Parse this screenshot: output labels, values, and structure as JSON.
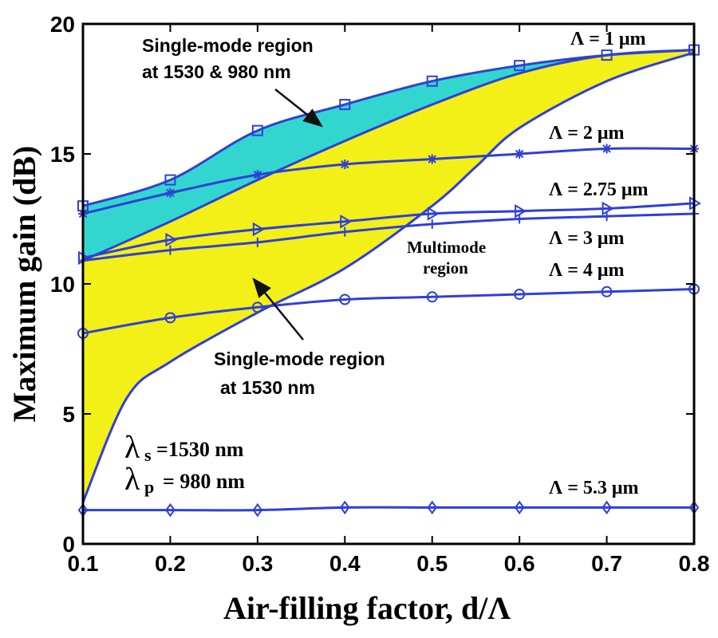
{
  "chart_data": {
    "type": "line",
    "title": "",
    "xlabel": "Air-filling factor, d/Λ",
    "ylabel": "Maximum gain (dB)",
    "xlim": [
      0.1,
      0.8
    ],
    "ylim": [
      0,
      20
    ],
    "xticks": [
      "0.1",
      "0.2",
      "0.3",
      "0.4",
      "0.5",
      "0.6",
      "0.7",
      "0.8"
    ],
    "yticks": [
      "0",
      "5",
      "10",
      "15",
      "20"
    ],
    "grid": false,
    "x": [
      0.1,
      0.2,
      0.3,
      0.4,
      0.5,
      0.6,
      0.7,
      0.8
    ],
    "series": [
      {
        "name": "Λ = 1 μm",
        "marker": "square",
        "values": [
          13.0,
          14.0,
          15.9,
          16.9,
          17.8,
          18.4,
          18.8,
          19.0
        ]
      },
      {
        "name": "Λ = 2 μm",
        "marker": "star",
        "values": [
          12.7,
          13.5,
          14.2,
          14.6,
          14.8,
          15.0,
          15.2,
          15.2
        ]
      },
      {
        "name": "Λ = 2.75 μm",
        "marker": "triangle-right",
        "values": [
          11.0,
          11.7,
          12.1,
          12.4,
          12.7,
          12.8,
          12.9,
          13.1
        ]
      },
      {
        "name": "Λ = 3 μm",
        "marker": "plus",
        "values": [
          10.9,
          11.3,
          11.6,
          12.0,
          12.3,
          12.5,
          12.6,
          12.7
        ]
      },
      {
        "name": "Λ = 4 μm",
        "marker": "circle",
        "values": [
          8.1,
          8.7,
          9.1,
          9.4,
          9.5,
          9.6,
          9.7,
          9.8
        ]
      },
      {
        "name": "Λ = 5.3 μm",
        "marker": "diamond",
        "values": [
          1.3,
          1.3,
          1.3,
          1.4,
          1.4,
          1.4,
          1.4,
          1.4
        ]
      }
    ],
    "boundaries": {
      "dual_single_mode_upper": {
        "x": [
          0.1,
          0.2,
          0.3,
          0.4,
          0.5,
          0.6,
          0.7,
          0.8
        ],
        "y": [
          13.0,
          14.0,
          15.9,
          16.9,
          17.8,
          18.4,
          18.8,
          19.0
        ]
      },
      "dual_single_mode_lower": {
        "x": [
          0.1,
          0.2,
          0.3,
          0.4,
          0.5,
          0.6,
          0.7,
          0.8
        ],
        "y": [
          10.9,
          12.4,
          14.0,
          15.5,
          16.9,
          18.1,
          18.8,
          19.0
        ]
      },
      "single_mode_1530_lower": {
        "x": [
          0.1,
          0.15,
          0.2,
          0.3,
          0.4,
          0.5,
          0.55,
          0.6,
          0.7,
          0.8
        ],
        "y": [
          1.6,
          5.6,
          7.0,
          8.9,
          10.6,
          13.0,
          14.5,
          16.0,
          17.8,
          18.9
        ]
      }
    },
    "regions": [
      {
        "label": "Single-mode region at 1530 & 980 nm",
        "lines": [
          "Single-mode region",
          "at 1530 & 980 nm"
        ],
        "color": "#33d6cf"
      },
      {
        "label": "Single-mode region at 1530 nm",
        "lines": [
          "Single-mode region",
          "at 1530 nm"
        ],
        "color": "#f2f016"
      },
      {
        "label": "Multimode region",
        "lines": [
          "Multimode",
          "region"
        ],
        "color": "#ffffff"
      }
    ],
    "annotations": [
      {
        "symbol": "λ",
        "sub": "s",
        "text": "=1530 nm"
      },
      {
        "symbol": "λ",
        "sub": "p",
        "text": "= 980 nm"
      }
    ],
    "line_color": "#2f3fd8"
  }
}
